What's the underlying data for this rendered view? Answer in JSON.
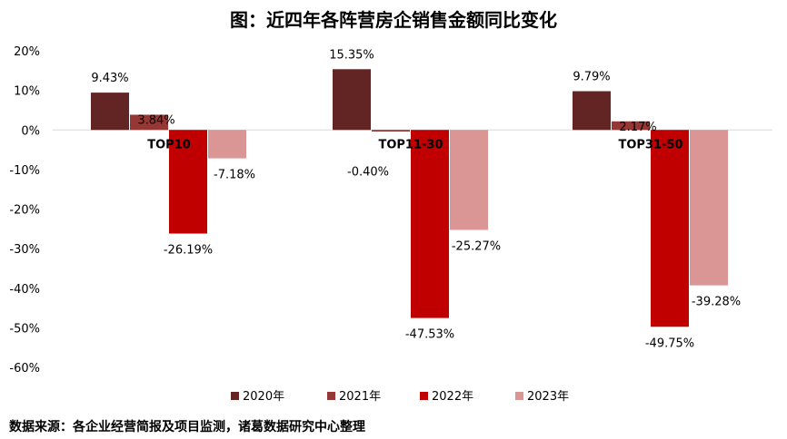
{
  "chart_data": {
    "type": "bar",
    "title": "图：近四年各阵营房企销售金额同比变化",
    "categories": [
      "TOP10",
      "TOP11-30",
      "TOP31-50"
    ],
    "series": [
      {
        "name": "2020年",
        "values": [
          9.43,
          15.35,
          9.79
        ],
        "labels": [
          "9.43%",
          "15.35%",
          "9.79%"
        ],
        "color": "#632523"
      },
      {
        "name": "2021年",
        "values": [
          3.84,
          -0.4,
          2.17
        ],
        "labels": [
          "3.84%",
          "-0.40%",
          "2.17%"
        ],
        "color": "#953735"
      },
      {
        "name": "2022年",
        "values": [
          -26.19,
          -47.53,
          -49.75
        ],
        "labels": [
          "-26.19%",
          "-47.53%",
          "-49.75%"
        ],
        "color": "#c00000"
      },
      {
        "name": "2023年",
        "values": [
          -7.18,
          -25.27,
          -39.28
        ],
        "labels": [
          "-7.18%",
          "-25.27%",
          "-39.28%"
        ],
        "color": "#d99694"
      }
    ],
    "yticks": [
      "20%",
      "10%",
      "0%",
      "-10%",
      "-20%",
      "-30%",
      "-40%",
      "-50%",
      "-60%"
    ],
    "ytick_values": [
      20,
      10,
      0,
      -10,
      -20,
      -30,
      -40,
      -50,
      -60
    ],
    "ylim": [
      -60,
      20
    ],
    "grid": false,
    "legend": "bottom"
  },
  "source": "数据来源：各企业经营简报及项目监测，诸葛数据研究中心整理"
}
